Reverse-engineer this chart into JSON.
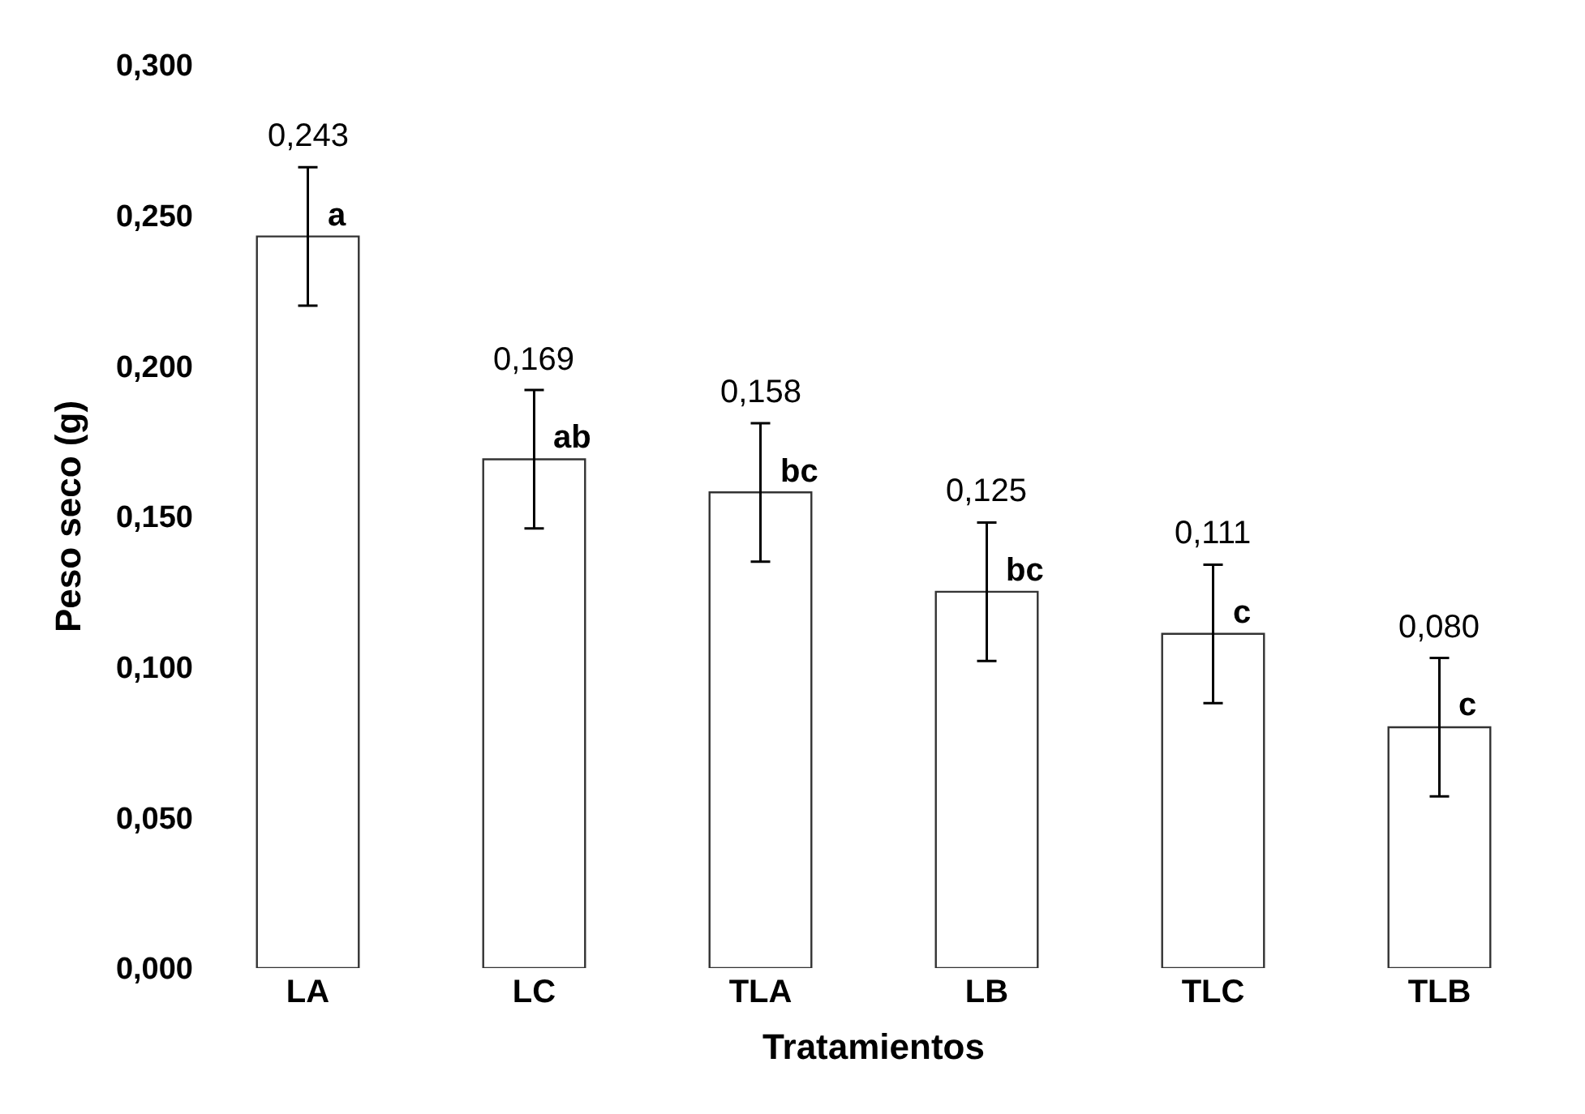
{
  "chart_data": {
    "type": "bar",
    "xlabel": "Tratamientos",
    "ylabel": "Peso seco (g)",
    "categories": [
      "LA",
      "LC",
      "TLA",
      "LB",
      "TLC",
      "TLB"
    ],
    "values": [
      0.243,
      0.169,
      0.158,
      0.125,
      0.111,
      0.08
    ],
    "value_labels": [
      "0,243",
      "0,169",
      "0,158",
      "0,125",
      "0,111",
      "0,080"
    ],
    "errors": [
      0.023,
      0.023,
      0.023,
      0.023,
      0.023,
      0.023
    ],
    "color": "#ffffff",
    "ylim": [
      0,
      0.3
    ],
    "grid": false,
    "yticks": [
      {
        "value": 0,
        "label": "0,000"
      },
      {
        "value": 0.05,
        "label": "0,050"
      },
      {
        "value": 0.1,
        "label": "0,100"
      },
      {
        "value": 0.15,
        "label": "0,150"
      },
      {
        "value": 0.2,
        "label": "0,200"
      },
      {
        "value": 0.25,
        "label": "0,250"
      },
      {
        "value": 0.3,
        "label": "0,300"
      }
    ],
    "annotations": [
      {
        "text": "a",
        "x": "LA",
        "y": 0.243
      },
      {
        "text": "ab",
        "x": "LC",
        "y": 0.169
      },
      {
        "text": "bc",
        "x": "TLA",
        "y": 0.158
      },
      {
        "text": "bc",
        "x": "LB",
        "y": 0.125
      },
      {
        "text": "c",
        "x": "TLC",
        "y": 0.111
      },
      {
        "text": "c",
        "x": "TLB",
        "y": 0.08
      }
    ]
  }
}
